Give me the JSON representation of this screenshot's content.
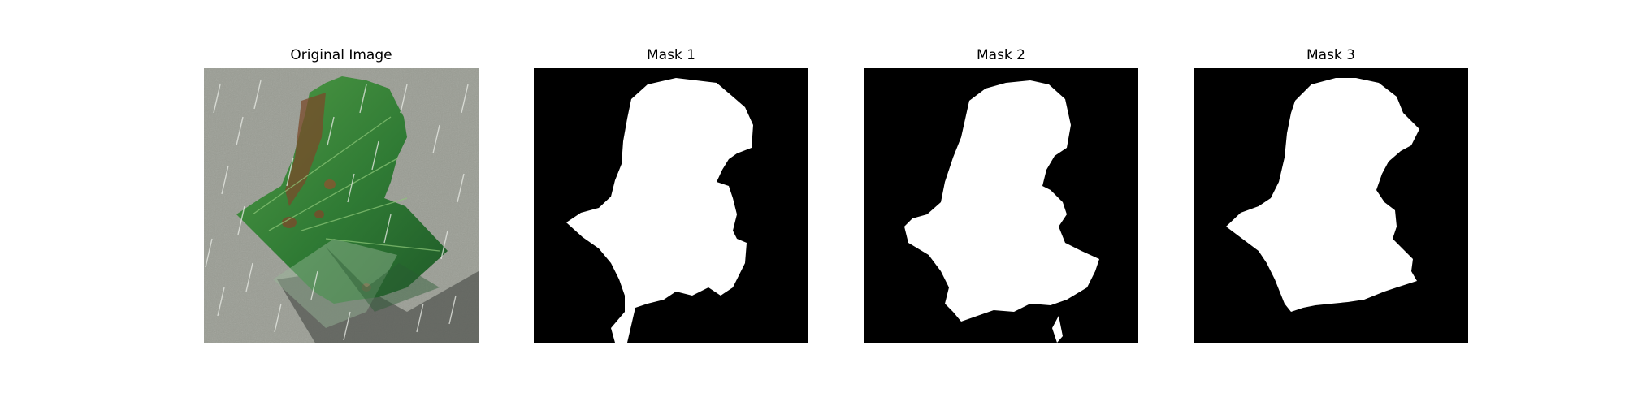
{
  "panels": [
    {
      "title": "Original Image"
    },
    {
      "title": "Mask 1"
    },
    {
      "title": "Mask 2"
    },
    {
      "title": "Mask 3"
    }
  ],
  "colors": {
    "background": "#ffffff",
    "mask_background": "#000000",
    "mask_foreground": "#ffffff",
    "leaf_green": "#3f8a3a",
    "leaf_disease": "#7a4a2a",
    "ground": "#9a9d94"
  }
}
